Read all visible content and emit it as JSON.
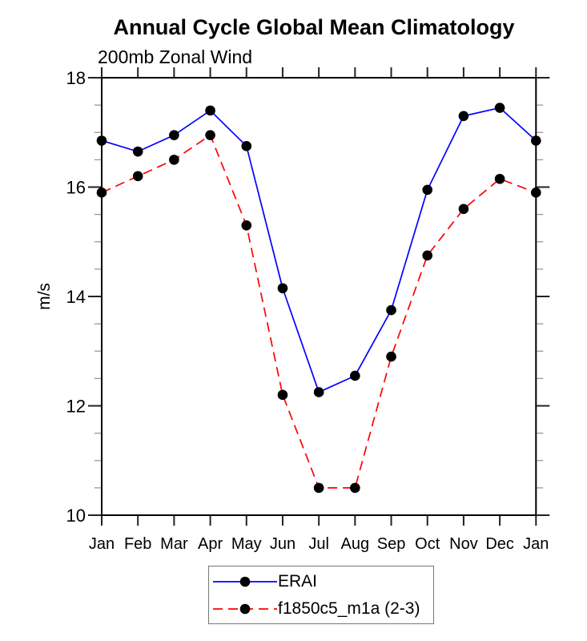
{
  "title": "Annual Cycle Global Mean Climatology",
  "subtitle": "200mb Zonal Wind",
  "chart_data": {
    "type": "line",
    "title": "Annual Cycle Global Mean Climatology",
    "subtitle": "200mb Zonal Wind",
    "ylabel": "m/s",
    "xlabel": "",
    "categories": [
      "Jan",
      "Feb",
      "Mar",
      "Apr",
      "May",
      "Jun",
      "Jul",
      "Aug",
      "Sep",
      "Oct",
      "Nov",
      "Dec",
      "Jan"
    ],
    "series": [
      {
        "name": "ERAI",
        "color": "#0000ff",
        "line_style": "solid",
        "values": [
          16.85,
          16.65,
          16.95,
          17.4,
          16.75,
          14.15,
          12.25,
          12.55,
          13.75,
          15.95,
          17.3,
          17.45,
          16.85
        ]
      },
      {
        "name": "f1850c5_m1a (2-3)",
        "color": "#ff0000",
        "line_style": "dashed",
        "values": [
          15.9,
          16.2,
          16.5,
          16.95,
          15.3,
          12.2,
          10.5,
          10.5,
          12.9,
          14.75,
          15.6,
          16.15,
          15.9
        ]
      }
    ],
    "ylim": [
      10,
      18
    ],
    "yticks": [
      10,
      12,
      14,
      16,
      18
    ],
    "y_minor_step": 0.5,
    "marker": "filled-circle",
    "marker_color": "#000000",
    "grid": false,
    "legend_position": "bottom-center"
  }
}
